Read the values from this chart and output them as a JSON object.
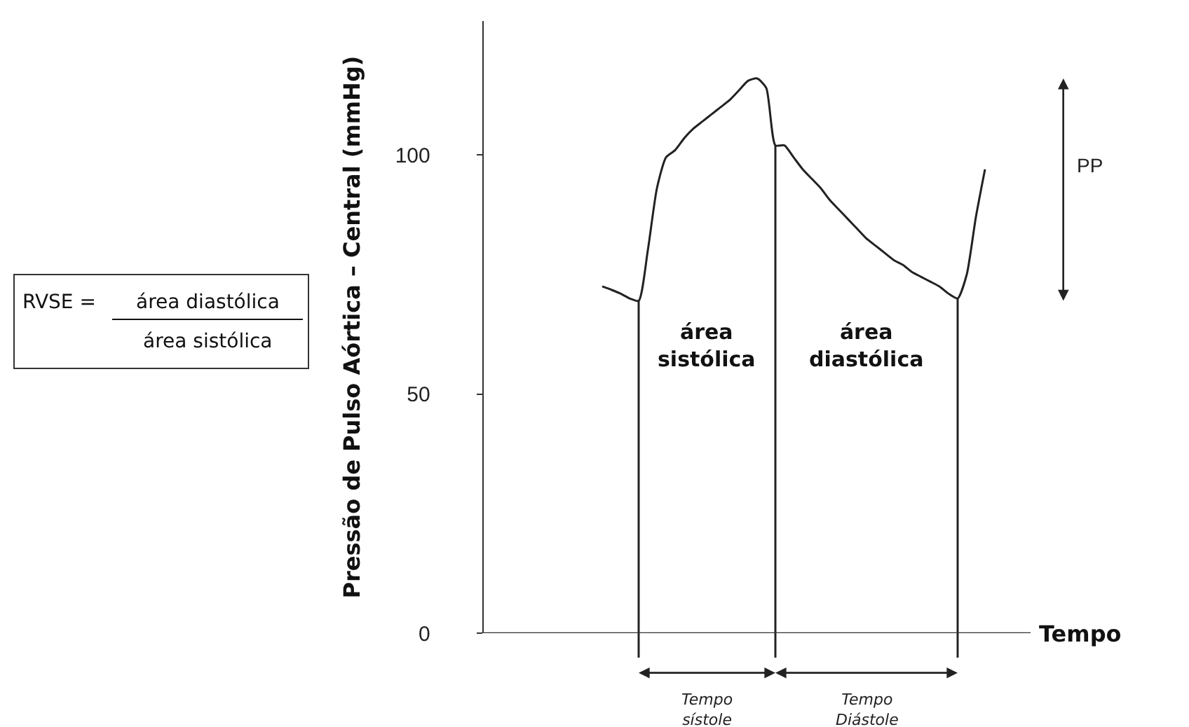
{
  "chart_data": {
    "type": "line",
    "xlabel": "Tempo",
    "ylabel": "Pressão de Pulso Aórtica – Central (mmHg)",
    "categories": [
      null,
      null,
      null,
      null,
      null,
      null,
      null,
      null,
      null,
      null,
      null,
      null,
      null,
      null,
      null,
      null,
      null,
      null,
      null,
      null,
      null,
      null,
      null,
      null,
      null,
      null,
      null,
      null,
      null,
      null,
      null,
      null,
      null,
      null,
      null,
      null,
      null,
      null,
      null,
      null,
      null,
      null,
      null,
      null,
      null,
      null,
      null,
      null,
      null,
      null,
      null,
      null,
      null,
      null,
      null,
      null,
      null,
      null,
      null,
      null,
      null
    ],
    "series": [
      {
        "color": "#222222",
        "values": [
          null,
          null,
          null,
          null,
          null,
          null,
          null,
          null,
          null,
          null,
          null,
          null,
          null,
          72.5,
          71.8,
          71,
          70,
          69.5,
          80,
          93,
          99.5,
          101,
          103.5,
          105.5,
          107,
          108.5,
          110,
          111.5,
          113.5,
          115.5,
          116,
          114,
          102,
          102,
          99.5,
          97,
          95,
          93,
          90.5,
          88.5,
          86.5,
          84.5,
          82.5,
          81,
          79.5,
          78,
          77,
          75.5,
          74.5,
          73.5,
          72.5,
          71,
          70,
          75,
          87,
          97,
          null,
          null,
          null,
          null,
          null
        ]
      }
    ],
    "ylim": [
      0,
      128
    ],
    "yticks": [
      0,
      50,
      100
    ],
    "tick_labels": "y",
    "marker": "none",
    "line_style": "solid",
    "annotations": [
      "área sistólica",
      "área diastólica",
      "Tempo sístole",
      "Tempo Diástole",
      "PP",
      "RVSE =",
      "área diastólica",
      "área sistólica"
    ]
  }
}
